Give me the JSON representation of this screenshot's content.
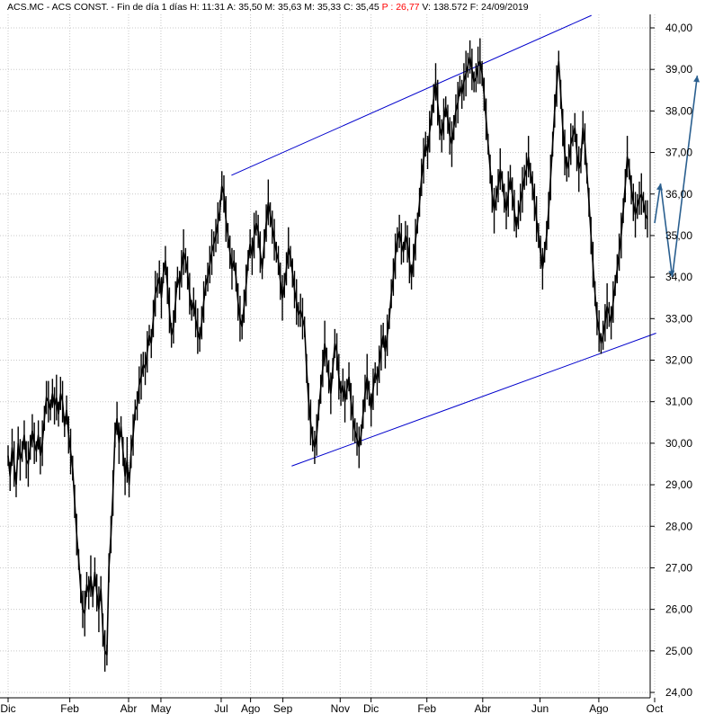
{
  "header": {
    "symbol": "ACS.MC",
    "name": "ACS CONST.",
    "period": "Fin de día 1 días",
    "high_label": "H:",
    "high": "11:31",
    "open_label": "A:",
    "open": "35,50",
    "max_label": "M:",
    "max": "35,63",
    "min_label": "M:",
    "min": "35,33",
    "close_label": "C:",
    "close": "35,45",
    "pct_label": "P :",
    "pct": "26,77",
    "volume_label": "V:",
    "volume": "138.572",
    "date_label": "F:",
    "date": "24/09/2019"
  },
  "chart_data": {
    "type": "line",
    "y_range": [
      24,
      40
    ],
    "y_ticks": [
      "24,00",
      "25,00",
      "26,00",
      "27,00",
      "28,00",
      "29,00",
      "30,00",
      "31,00",
      "32,00",
      "33,00",
      "34,00",
      "35,00",
      "36,00",
      "37,00",
      "38,00",
      "39,00",
      "40,00"
    ],
    "y_values": [
      24,
      25,
      26,
      27,
      28,
      29,
      30,
      31,
      32,
      33,
      34,
      35,
      36,
      37,
      38,
      39,
      40
    ],
    "x_labels": [
      "Dic",
      "Feb",
      "Abr",
      "May",
      "Jul",
      "Ago",
      "Sep",
      "Nov",
      "Dic",
      "Feb",
      "Abr",
      "Jun",
      "Ago",
      "Oct"
    ],
    "x_label_index": [
      0,
      42,
      82,
      104,
      145,
      165,
      187,
      226,
      247,
      285,
      323,
      362,
      402,
      440
    ],
    "x_max_index": 440,
    "series": [
      {
        "values": [
          29.7,
          29.2,
          29.9,
          29.5,
          29.0,
          30.0,
          29.6,
          29.8,
          30.2,
          29.6,
          29.5,
          29.9,
          30.3,
          30.0,
          29.8,
          30.2,
          29.7,
          30.0,
          30.6,
          31.1,
          31.0,
          30.8,
          31.2,
          30.9,
          31.1,
          30.7,
          31.2,
          31.0,
          30.4,
          30.8,
          30.2,
          29.8,
          29.4,
          28.6,
          27.8,
          27.2,
          26.5,
          26.0,
          25.9,
          26.6,
          26.4,
          26.8,
          26.3,
          26.9,
          26.4,
          26.0,
          26.5,
          25.5,
          25.0,
          24.9,
          27.0,
          27.8,
          28.8,
          30.2,
          30.6,
          30.0,
          30.4,
          29.8,
          29.2,
          29.6,
          29.0,
          29.8,
          30.2,
          30.8,
          30.9,
          31.4,
          31.6,
          31.9,
          31.8,
          32.2,
          32.6,
          32.4,
          33.0,
          33.6,
          33.8,
          34.0,
          33.5,
          34.1,
          34.4,
          33.8,
          33.2,
          32.6,
          32.8,
          33.4,
          34.0,
          33.8,
          34.2,
          34.6,
          34.4,
          34.1,
          33.6,
          33.2,
          33.4,
          33.0,
          32.7,
          32.5,
          32.9,
          33.4,
          33.8,
          34.0,
          34.3,
          34.6,
          34.8,
          35.0,
          35.3,
          35.6,
          36.2,
          36.0,
          35.4,
          35.0,
          34.6,
          34.2,
          34.4,
          34.0,
          33.4,
          33.0,
          32.8,
          33.3,
          33.8,
          34.4,
          34.8,
          34.5,
          35.0,
          35.3,
          35.1,
          34.6,
          34.2,
          34.8,
          35.3,
          35.8,
          35.5,
          35.2,
          34.9,
          34.6,
          34.4,
          33.9,
          33.5,
          33.8,
          34.2,
          34.7,
          34.5,
          34.1,
          33.7,
          33.4,
          33.1,
          33.2,
          33.0,
          32.8,
          31.8,
          31.0,
          30.5,
          30.1,
          29.9,
          30.2,
          30.8,
          31.3,
          31.8,
          32.4,
          32.0,
          31.6,
          31.2,
          31.8,
          32.4,
          32.2,
          31.6,
          31.2,
          31.4,
          31.0,
          31.3,
          31.6,
          31.0,
          30.6,
          30.3,
          30.1,
          29.9,
          30.2,
          30.7,
          31.2,
          31.6,
          31.2,
          30.8,
          31.3,
          31.7,
          31.5,
          31.9,
          32.3,
          32.6,
          32.2,
          32.6,
          33.0,
          33.6,
          34.0,
          34.5,
          34.9,
          35.1,
          34.8,
          34.6,
          35.0,
          34.8,
          34.4,
          34.0,
          34.4,
          34.9,
          35.3,
          35.8,
          36.4,
          36.8,
          37.2,
          37.0,
          37.5,
          37.9,
          38.3,
          38.7,
          38.2,
          37.6,
          37.4,
          37.8,
          38.1,
          37.8,
          37.4,
          37.2,
          37.6,
          38.0,
          38.2,
          38.6,
          38.4,
          38.7,
          38.9,
          39.1,
          39.3,
          39.0,
          38.7,
          38.8,
          39.1,
          39.2,
          38.9,
          38.4,
          37.8,
          37.2,
          36.6,
          36.0,
          35.6,
          35.9,
          36.2,
          36.6,
          36.3,
          35.9,
          35.6,
          36.0,
          36.4,
          36.0,
          35.6,
          35.2,
          35.5,
          35.8,
          36.1,
          36.4,
          36.6,
          36.9,
          36.5,
          36.2,
          35.8,
          35.4,
          35.0,
          34.6,
          34.2,
          34.6,
          35.0,
          35.6,
          36.4,
          37.2,
          38.0,
          38.6,
          39.2,
          38.4,
          37.6,
          37.0,
          36.6,
          36.8,
          37.2,
          37.4,
          37.6,
          37.0,
          36.6,
          36.8,
          37.6,
          37.2,
          36.5,
          35.8,
          35.0,
          34.3,
          33.6,
          33.0,
          32.7,
          32.4,
          32.6,
          32.9,
          33.3,
          33.1,
          32.9,
          33.4,
          33.8,
          34.2,
          34.6,
          35.0,
          35.6,
          36.2,
          36.9,
          36.6,
          36.1,
          35.8,
          35.5,
          35.7,
          35.9,
          36.0,
          35.8,
          35.5,
          35.4
        ]
      }
    ],
    "annotations": {
      "upper_channel": [
        [
          152,
          36.45
        ],
        [
          397,
          40.3
        ]
      ],
      "lower_channel": [
        [
          193,
          29.45
        ],
        [
          441,
          32.65
        ]
      ],
      "projection": [
        [
          440,
          35.3
        ],
        [
          444,
          36.25
        ],
        [
          452,
          34.0
        ],
        [
          469,
          38.85
        ]
      ]
    },
    "colors": {
      "price": "#000000",
      "channel": "#0000cc",
      "projection": "#2a5f8f",
      "grid": "#c8c8c8"
    },
    "grid": true
  }
}
